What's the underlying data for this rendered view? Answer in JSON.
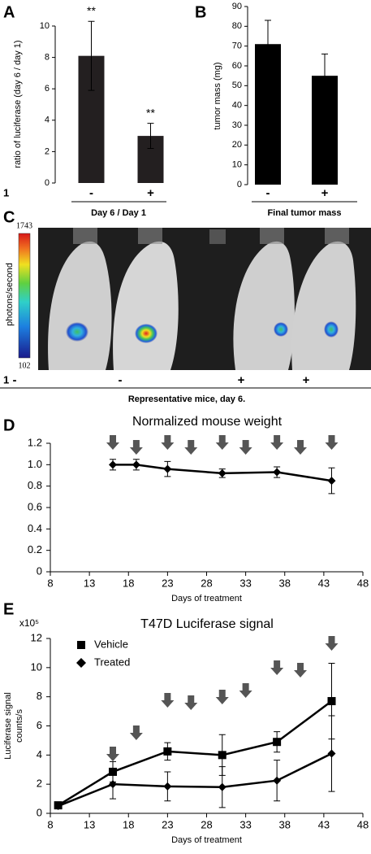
{
  "chart_data": [
    {
      "type": "bar",
      "panel": "A",
      "ylabel": "ratio of luciferase (day 6 / day 1)",
      "row_label": "1",
      "xlabel": "Day 6 / Day 1",
      "categories": [
        "-",
        "+"
      ],
      "values": [
        8.1,
        3.0
      ],
      "errors": [
        2.2,
        0.8
      ],
      "annotations": [
        "**",
        "**"
      ],
      "color": "#231f20",
      "ylim": [
        0,
        10
      ],
      "yticks": [
        0,
        2,
        4,
        6,
        8,
        10
      ]
    },
    {
      "type": "bar",
      "panel": "B",
      "ylabel": "tumor mass (mg)",
      "xlabel": "Final tumor mass",
      "categories": [
        "-",
        "+"
      ],
      "values": [
        71,
        55
      ],
      "errors": [
        12,
        11
      ],
      "color": "#000000",
      "ylim": [
        0,
        90
      ],
      "yticks": [
        0,
        10,
        20,
        30,
        40,
        50,
        60,
        70,
        80,
        90
      ]
    },
    {
      "type": "image",
      "panel": "C",
      "colorbar_label": "photons/second",
      "clim": [
        102,
        1743
      ],
      "row_label": "1",
      "groups": [
        "-",
        "-",
        "+",
        "+"
      ],
      "caption": "Representative mice, day 6."
    },
    {
      "type": "line",
      "panel": "D",
      "title": "Normalized mouse weight",
      "x": [
        16,
        19,
        23,
        30,
        37,
        44
      ],
      "series": [
        {
          "marker": "diamond",
          "color": "#000000",
          "values": [
            1.0,
            1.0,
            0.96,
            0.92,
            0.93,
            0.85
          ],
          "errors": [
            0.05,
            0.05,
            0.07,
            0.04,
            0.05,
            0.12
          ]
        }
      ],
      "arrows_x": [
        16,
        19,
        23,
        26,
        30,
        33,
        37,
        40,
        44
      ],
      "arrow_color": "#555555",
      "xlabel": "Days of treatment",
      "xlim": [
        8,
        48
      ],
      "xticks": [
        8,
        13,
        18,
        23,
        28,
        33,
        38,
        43,
        48
      ],
      "ylim": [
        0,
        1.2
      ],
      "yticks": [
        0,
        0.2,
        0.4,
        0.6,
        0.8,
        {
          "value": 1,
          "label": "1.0"
        },
        1.2
      ]
    },
    {
      "type": "line",
      "panel": "E",
      "title": "T47D Luciferase signal",
      "y_multiplier": "x10⁵",
      "ylabel": [
        "Luciferase signal",
        "counts/s"
      ],
      "x": [
        9,
        16,
        23,
        30,
        37,
        44
      ],
      "series": [
        {
          "name": "Vehicle",
          "marker": "square",
          "color": "#000000",
          "values": [
            0.55,
            2.85,
            4.25,
            4.0,
            4.9,
            7.7
          ],
          "errors": [
            0.1,
            0.7,
            0.6,
            1.4,
            0.7,
            2.6
          ]
        },
        {
          "name": "Treated",
          "marker": "diamond",
          "color": "#000000",
          "values": [
            0.5,
            2.0,
            1.85,
            1.8,
            2.25,
            4.1
          ],
          "errors": [
            0.1,
            1.0,
            1.0,
            1.4,
            1.4,
            2.6
          ]
        }
      ],
      "arrows_x": [
        16,
        19,
        23,
        26,
        30,
        33,
        37,
        40,
        44
      ],
      "arrow_color": "#555555",
      "xlabel": "Days of treatment",
      "xlim": [
        8,
        48
      ],
      "xticks": [
        8,
        13,
        18,
        23,
        28,
        33,
        38,
        43,
        48
      ],
      "ylim": [
        0,
        12
      ],
      "yticks": [
        0,
        2,
        4,
        6,
        8,
        10,
        12
      ]
    }
  ]
}
